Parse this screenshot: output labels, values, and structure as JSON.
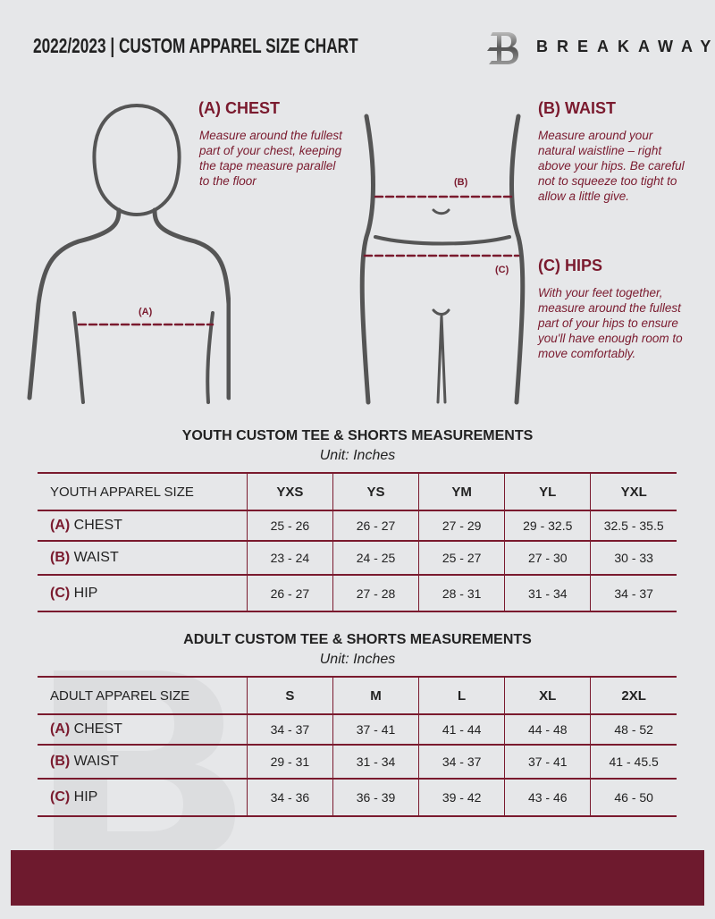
{
  "header": {
    "title": "2022/2023  |  CUSTOM APPAREL SIZE CHART",
    "brand": "BREAKAWAY",
    "logo_letter": "B"
  },
  "colors": {
    "accent": "#7a1a2e",
    "background": "#e6e7e9",
    "footer": "#6e1a2e"
  },
  "chest": {
    "title": "(A) CHEST",
    "text": "Measure around the fullest part of your chest, keeping the tape measure parallel to the floor",
    "marker": "(A)"
  },
  "waist": {
    "title": "(B) WAIST",
    "text": "Measure around your natural waistline – right above your hips. Be careful not to squeeze too tight to allow a little give.",
    "marker": "(B)"
  },
  "hips": {
    "title": "(C) HIPS",
    "text": "With your feet together, measure around the fullest part of your hips to ensure you'll have enough room to move comfortably.",
    "marker": "(C)"
  },
  "youth": {
    "title": "YOUTH CUSTOM TEE & SHORTS MEASUREMENTS",
    "unit": "Unit: Inches",
    "header": "YOUTH APPAREL SIZE",
    "sizes": [
      "YXS",
      "YS",
      "YM",
      "YL",
      "YXL"
    ],
    "rows": [
      {
        "code": "(A)",
        "name": "CHEST",
        "values": [
          "25 - 26",
          "26 - 27",
          "27 - 29",
          "29 - 32.5",
          "32.5 - 35.5"
        ]
      },
      {
        "code": "(B)",
        "name": "WAIST",
        "values": [
          "23 - 24",
          "24 - 25",
          "25 - 27",
          "27 - 30",
          "30 - 33"
        ]
      },
      {
        "code": "(C)",
        "name": "HIP",
        "values": [
          "26 - 27",
          "27 - 28",
          "28 - 31",
          "31 - 34",
          "34 - 37"
        ]
      }
    ]
  },
  "adult": {
    "title": "ADULT CUSTOM TEE & SHORTS MEASUREMENTS",
    "unit": "Unit: Inches",
    "header": "ADULT APPAREL SIZE",
    "sizes": [
      "S",
      "M",
      "L",
      "XL",
      "2XL"
    ],
    "rows": [
      {
        "code": "(A)",
        "name": "CHEST",
        "values": [
          "34 - 37",
          "37 - 41",
          "41 - 44",
          "44 - 48",
          "48 - 52"
        ]
      },
      {
        "code": "(B)",
        "name": "WAIST",
        "values": [
          "29 - 31",
          "31 - 34",
          "34 - 37",
          "37 - 41",
          "41 - 45.5"
        ]
      },
      {
        "code": "(C)",
        "name": "HIP",
        "values": [
          "34 - 36",
          "36 - 39",
          "39 - 42",
          "43 - 46",
          "46 - 50"
        ]
      }
    ]
  }
}
